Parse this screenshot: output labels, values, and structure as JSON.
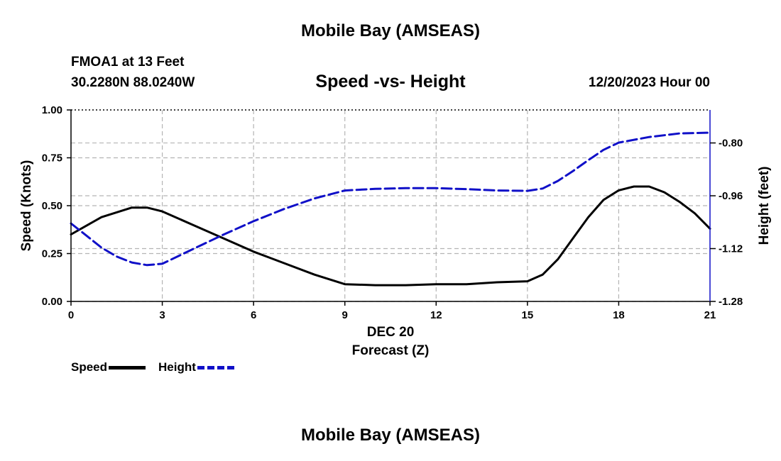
{
  "header": {
    "main_title": "Mobile Bay (AMSEAS)",
    "station": "FMOA1 at 13 Feet",
    "coordinates": "30.2280N  88.0240W",
    "datetime": "12/20/2023 Hour 00",
    "footer_title": "Mobile Bay (AMSEAS)"
  },
  "legend": {
    "speed_label": "Speed",
    "height_label": "Height"
  },
  "chart_data": {
    "type": "line",
    "title": "Speed -vs- Height",
    "xlabel": "Forecast (Z)",
    "xsublabel": "DEC 20",
    "ylabel": "Speed (Knots)",
    "y2label": "Height (feet)",
    "xlim": [
      0,
      21
    ],
    "ylim": [
      0,
      1
    ],
    "y2lim": [
      -1.28,
      -0.7
    ],
    "x_ticks": [
      0,
      3,
      6,
      9,
      12,
      15,
      18,
      21
    ],
    "y_ticks": [
      "0.00",
      "0.25",
      "0.50",
      "0.75",
      "1.00"
    ],
    "y2_ticks": [
      "-1.28",
      "-1.12",
      "-0.96",
      "-0.80"
    ],
    "grid": true,
    "colors": {
      "speed": "#000000",
      "height": "#1010c8",
      "grid": "#b4b4b4"
    },
    "series": [
      {
        "name": "Speed",
        "axis": "left",
        "x": [
          0,
          1,
          2,
          2.5,
          3,
          4,
          5,
          6,
          7,
          8,
          9,
          10,
          11,
          12,
          13,
          14,
          15,
          15.5,
          16,
          16.5,
          17,
          17.5,
          18,
          18.5,
          19,
          19.5,
          20,
          20.5,
          21
        ],
        "values": [
          0.35,
          0.44,
          0.49,
          0.49,
          0.47,
          0.4,
          0.33,
          0.26,
          0.2,
          0.14,
          0.09,
          0.085,
          0.085,
          0.09,
          0.09,
          0.1,
          0.105,
          0.14,
          0.22,
          0.33,
          0.44,
          0.53,
          0.58,
          0.6,
          0.6,
          0.57,
          0.52,
          0.46,
          0.38
        ]
      },
      {
        "name": "Height",
        "axis": "right",
        "x": [
          0,
          0.5,
          1,
          1.5,
          2,
          2.5,
          3,
          4,
          5,
          6,
          7,
          8,
          9,
          10,
          11,
          12,
          13,
          14,
          15,
          15.5,
          16,
          16.5,
          17,
          17.5,
          18,
          19,
          20,
          21
        ],
        "values": [
          -1.044,
          -1.08,
          -1.117,
          -1.144,
          -1.162,
          -1.17,
          -1.166,
          -1.122,
          -1.078,
          -1.037,
          -1.0,
          -0.968,
          -0.944,
          -0.939,
          -0.937,
          -0.937,
          -0.94,
          -0.944,
          -0.945,
          -0.938,
          -0.915,
          -0.885,
          -0.852,
          -0.821,
          -0.799,
          -0.782,
          -0.771,
          -0.769
        ]
      }
    ]
  }
}
